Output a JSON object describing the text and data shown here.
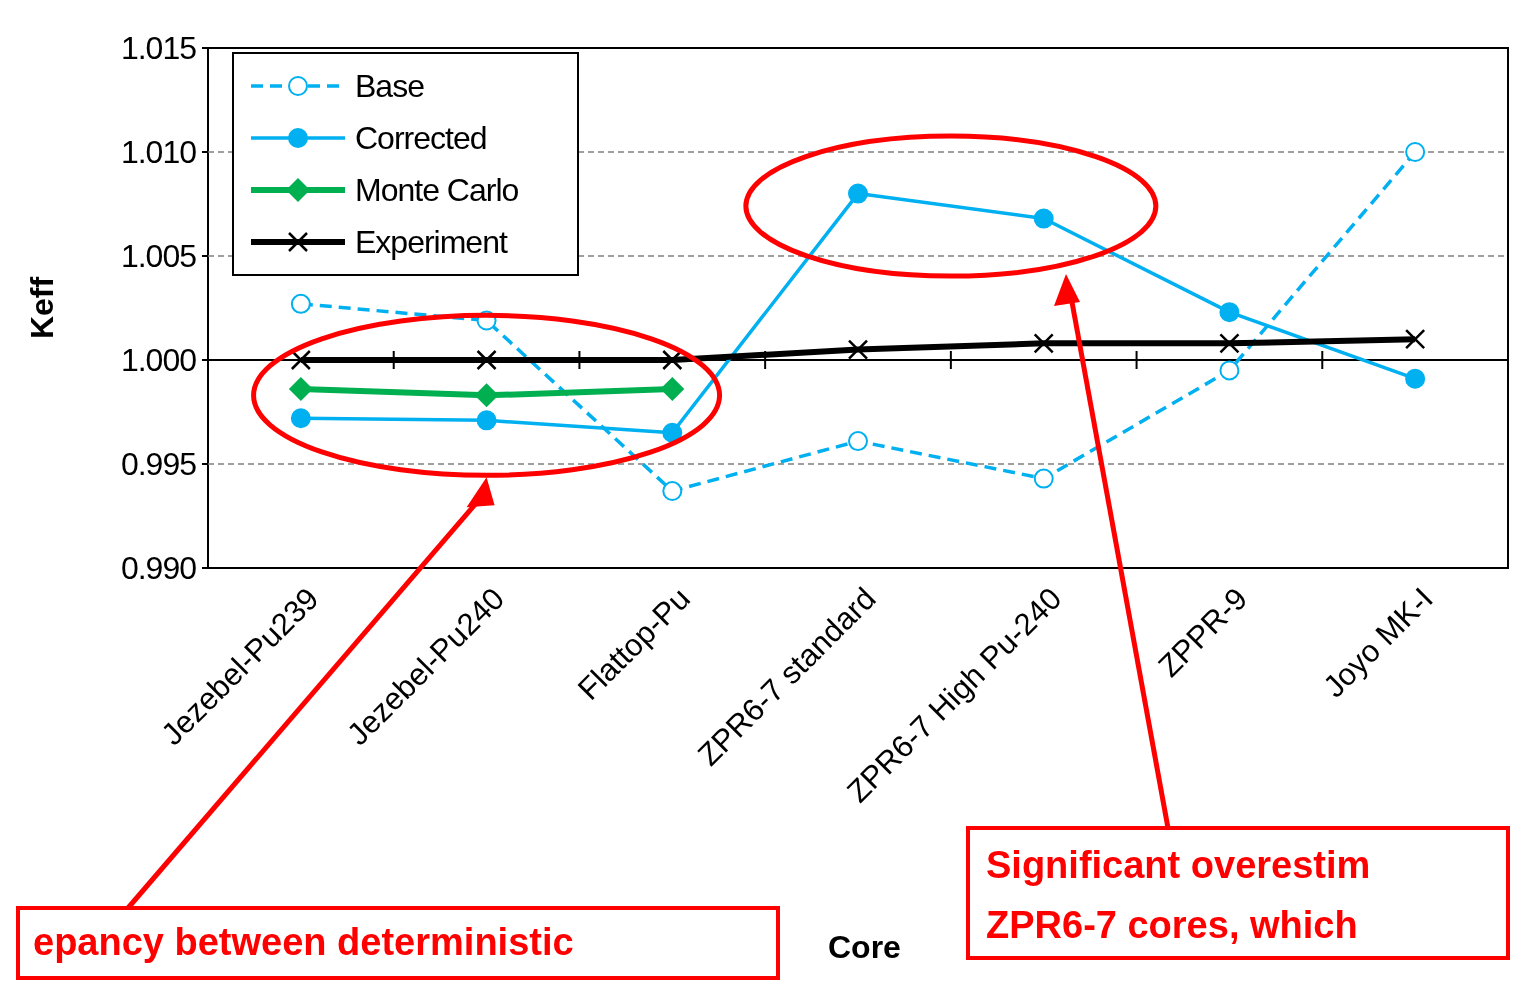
{
  "chart_data": {
    "type": "line",
    "xlabel": "Core",
    "ylabel": "Keff",
    "categories": [
      "Jezebel-Pu239",
      "Jezebel-Pu240",
      "Flattop-Pu",
      "ZPR6-7 standard",
      "ZPR6-7 High Pu-240",
      "ZPPR-9",
      "Joyo MK-I"
    ],
    "series": [
      {
        "name": "Base",
        "color": "#00b0f0",
        "marker": "circle",
        "line_style": "dashed",
        "values": [
          1.0027,
          1.0019,
          0.9937,
          0.9961,
          0.9943,
          0.9995,
          1.01
        ]
      },
      {
        "name": "Corrected",
        "color": "#00b0f0",
        "marker": "circle",
        "line_style": "solid",
        "values": [
          0.9972,
          0.9971,
          0.9965,
          1.008,
          1.0068,
          1.0023,
          0.9991
        ]
      },
      {
        "name": "Monte Carlo",
        "color": "#00b050",
        "marker": "diamond",
        "line_style": "solid",
        "values": [
          0.9986,
          0.9983,
          0.9986,
          null,
          null,
          null,
          null
        ]
      },
      {
        "name": "Experiment",
        "color": "#000000",
        "marker": "cross",
        "line_style": "solid",
        "values": [
          1.0,
          1.0,
          1.0,
          1.0005,
          1.0008,
          1.0008,
          1.001
        ]
      }
    ],
    "ylim": [
      0.99,
      1.015
    ],
    "yticks": [
      {
        "value": 0.99,
        "label": "0.990"
      },
      0.995,
      {
        "value": 1.0,
        "label": "1.000"
      },
      1.005,
      {
        "value": 1.01,
        "label": "1.010"
      },
      1.015
    ],
    "grid": "y",
    "legend": "top left",
    "ref_lines": [
      {
        "axis": "y",
        "value": 1.0,
        "color": "#000000"
      }
    ],
    "annotations": [
      "epancy between deterministic",
      "Significant overestim",
      "ZPR6-7 cores, which"
    ]
  }
}
